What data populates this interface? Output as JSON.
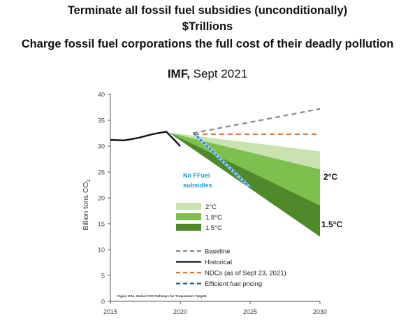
{
  "header": {
    "line1": "Terminate all fossil fuel subsidies (unconditionally)",
    "line2": "$Trillions",
    "line3": "Charge fossil fuel corporations the full cost of their deadly pollution",
    "source_bold": "IMF,",
    "source_rest": " Sept 2021"
  },
  "chart_data": {
    "type": "line",
    "ylabel": "Billion tons CO2",
    "xlim": [
      2015,
      2030
    ],
    "ylim": [
      0,
      40
    ],
    "x_ticks": [
      2015,
      2020,
      2025,
      2030
    ],
    "y_ticks": [
      0,
      5,
      10,
      15,
      20,
      25,
      30,
      35,
      40
    ],
    "caption": "Figure ES4. Global CO2 Pathways for Temperature Targets",
    "series": [
      {
        "name": "Baseline",
        "style": "dashed",
        "color": "#8a8a8a",
        "points": [
          [
            2020.9,
            32.5
          ],
          [
            2030,
            37.2
          ]
        ]
      },
      {
        "name": "Historical",
        "style": "solid",
        "color": "#111111",
        "points": [
          [
            2015,
            31.2
          ],
          [
            2016,
            31.1
          ],
          [
            2017,
            31.6
          ],
          [
            2018,
            32.3
          ],
          [
            2019,
            32.8
          ],
          [
            2020,
            30.0
          ]
        ]
      },
      {
        "name": "NDCs (as of Sept 23, 2021)",
        "style": "dashed",
        "color": "#e07b33",
        "points": [
          [
            2021,
            32.3
          ],
          [
            2030,
            32.3
          ]
        ]
      },
      {
        "name": "Efficient fuel pricing",
        "style": "dashed",
        "color": "#1f5fa8",
        "points": [
          [
            2021,
            32.4
          ],
          [
            2025,
            22.0
          ]
        ]
      }
    ],
    "bands": [
      {
        "name": "2°C",
        "color": "#c8e2b0",
        "start": [
          2019.2,
          32.6
        ],
        "upper": 29.0,
        "lower": 21.0
      },
      {
        "name": "1.8°C",
        "color": "#7fbf4d",
        "start": [
          2019.2,
          32.6
        ],
        "upper": 25.5,
        "lower": 17.5
      },
      {
        "name": "1.5°C",
        "color": "#4f8a2a",
        "start": [
          2019.2,
          32.6
        ],
        "upper": 18.5,
        "lower": 12.5
      }
    ],
    "annotations": {
      "no_subsidies": [
        "No  FFuel",
        "subsidies"
      ],
      "label_2c": "2°C",
      "label_15c": "1.5°C"
    }
  }
}
